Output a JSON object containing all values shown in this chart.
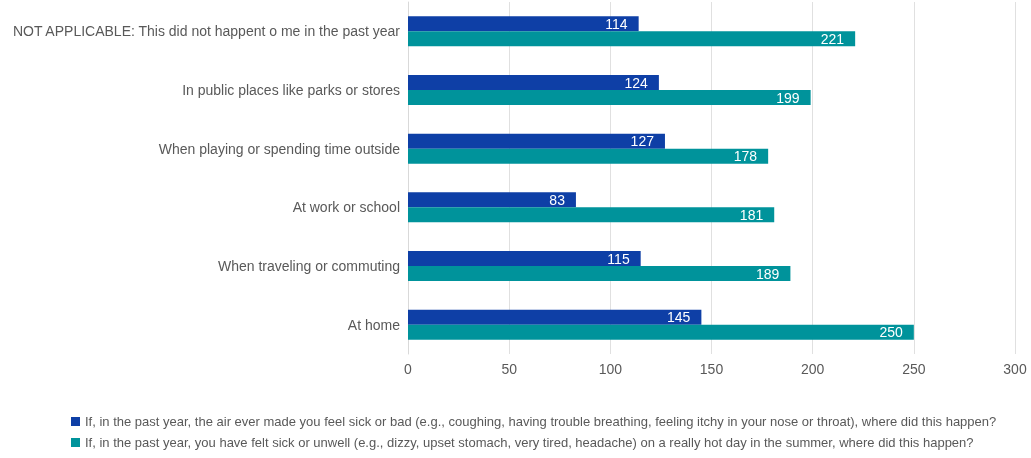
{
  "chart_data": {
    "type": "bar",
    "orientation": "horizontal",
    "categories": [
      "NOT APPLICABLE: This did not happent o me in the past year",
      "In public places like parks or stores",
      "When playing or spending time outside",
      "At work or school",
      "When traveling or commuting",
      "At home"
    ],
    "series": [
      {
        "name": "If, in the past year, the air ever made you feel sick or bad (e.g., coughing, having trouble breathing, feeling itchy in your nose or throat), where did this happen?",
        "color": "#0e3fa6",
        "values": [
          114,
          124,
          127,
          83,
          115,
          145
        ]
      },
      {
        "name": "If, in the past year, you have felt sick or unwell (e.g., dizzy, upset stomach, very tired, headache) on a really hot day in the summer, where did this happen?",
        "color": "#00939b",
        "values": [
          221,
          199,
          178,
          181,
          189,
          250
        ]
      }
    ],
    "xlim": [
      0,
      300
    ],
    "xticks": [
      0,
      50,
      100,
      150,
      200,
      250,
      300
    ],
    "grid": "x",
    "legend": "bottom",
    "data_labels": true
  }
}
